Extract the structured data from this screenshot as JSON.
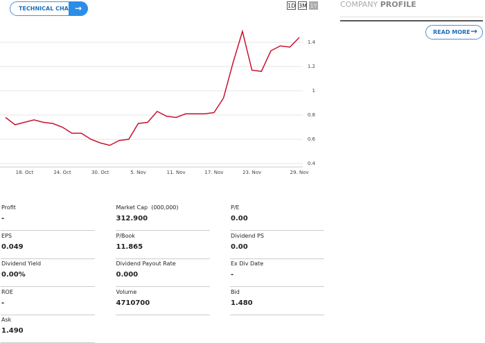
{
  "technical_chart_button": "TECHNICAL CHART",
  "ranges": [
    "1D",
    "3M",
    "1Y"
  ],
  "profile": {
    "light": "COMPANY",
    "bold": "PROFILE",
    "button": "READ MORE"
  },
  "chart_data": {
    "type": "line",
    "categories": [
      null,
      null,
      "18. Oct",
      null,
      null,
      null,
      "24. Oct",
      null,
      null,
      null,
      "30. Oct",
      null,
      null,
      null,
      "5. Nov",
      null,
      null,
      null,
      "11. Nov",
      null,
      null,
      null,
      "17. Nov",
      null,
      null,
      null,
      "23. Nov",
      null,
      null,
      null,
      null,
      "29. Nov"
    ],
    "series": [
      {
        "color": "#c8102e",
        "values": [
          0.78,
          0.72,
          0.74,
          0.76,
          0.74,
          0.73,
          0.7,
          0.65,
          0.65,
          0.6,
          0.57,
          0.55,
          0.59,
          0.6,
          0.73,
          0.74,
          0.83,
          0.79,
          0.78,
          0.81,
          0.81,
          0.81,
          0.82,
          0.94,
          1.23,
          1.49,
          1.17,
          1.16,
          1.33,
          1.37,
          1.36,
          1.44
        ]
      }
    ],
    "ylim": [
      0.4,
      1.6
    ],
    "yticks": [
      0.4,
      0.6,
      0.8,
      1,
      1.2,
      1.4
    ],
    "grid": true
  },
  "stats": [
    {
      "label": "Profit",
      "value": "-"
    },
    {
      "label": "Market Cap  (000,000)",
      "value": "312.900"
    },
    {
      "label": "P/E",
      "value": "0.00"
    },
    {
      "label": "EPS",
      "value": "0.049"
    },
    {
      "label": "P/Book",
      "value": "11.865"
    },
    {
      "label": "Dividend PS",
      "value": "0.00"
    },
    {
      "label": "Dividend Yield",
      "value": "0.00%"
    },
    {
      "label": "Dividend Payout Rate",
      "value": "0.000"
    },
    {
      "label": "Ex Div Date",
      "value": "-"
    },
    {
      "label": "ROE",
      "value": "-"
    },
    {
      "label": "Volume",
      "value": "4710700"
    },
    {
      "label": "Bid",
      "value": "1.480"
    },
    {
      "label": "Ask",
      "value": "1.490"
    }
  ]
}
